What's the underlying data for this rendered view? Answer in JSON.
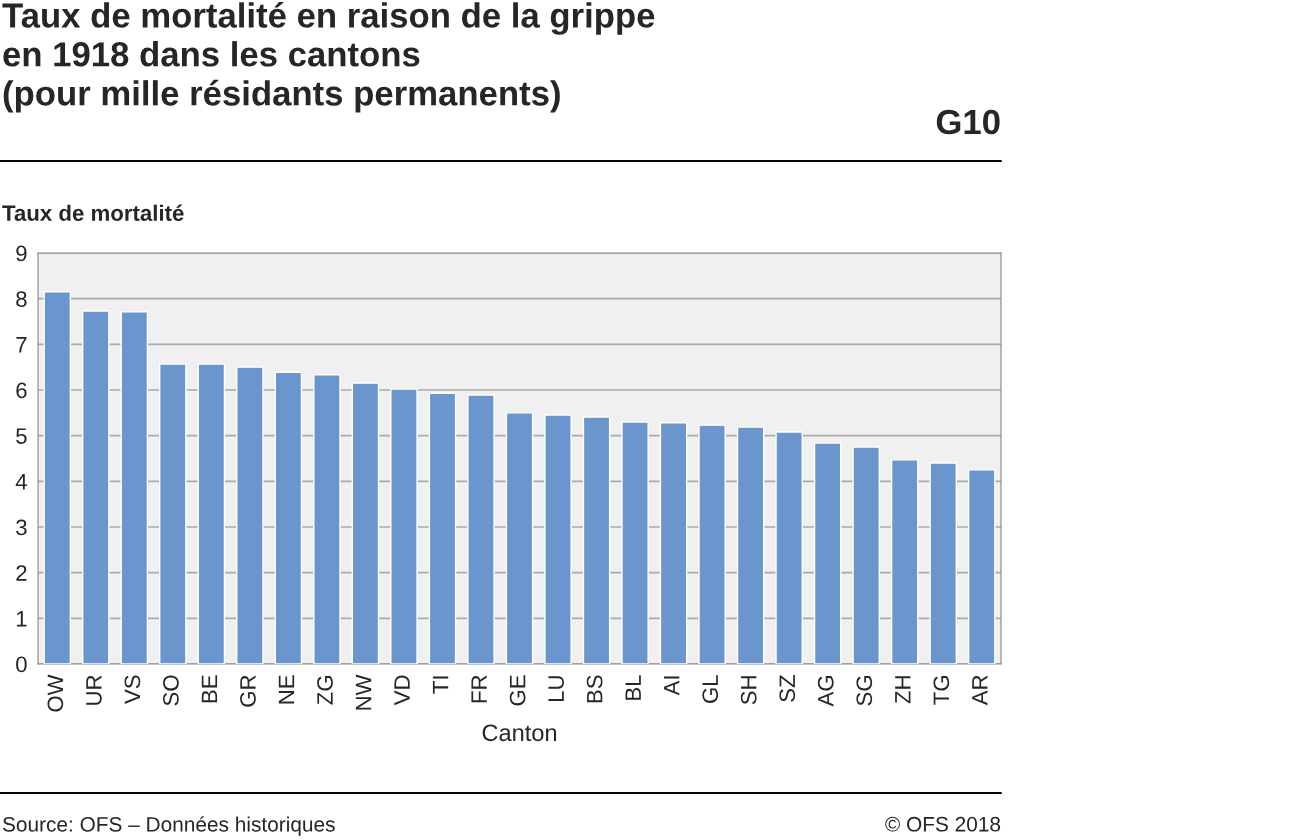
{
  "chart_data": {
    "type": "bar",
    "title": "Taux de mortalité en raison de la grippe\nen 1918 dans les cantons\n(pour mille résidants permanents)",
    "ylabel": "Taux de mortalité",
    "xlabel": "Canton",
    "categories": [
      "OW",
      "UR",
      "VS",
      "SO",
      "BE",
      "GR",
      "NE",
      "ZG",
      "NW",
      "VD",
      "TI",
      "FR",
      "GE",
      "LU",
      "BS",
      "BL",
      "AI",
      "GL",
      "SH",
      "SZ",
      "AG",
      "SG",
      "ZH",
      "TG",
      "AR"
    ],
    "values": [
      8.15,
      7.73,
      7.71,
      6.57,
      6.57,
      6.5,
      6.39,
      6.33,
      6.15,
      6.02,
      5.93,
      5.89,
      5.5,
      5.45,
      5.41,
      5.3,
      5.28,
      5.23,
      5.19,
      5.08,
      4.84,
      4.75,
      4.47,
      4.4,
      4.25
    ],
    "color": "#6a96cd",
    "ylim": [
      0,
      9
    ],
    "yticks": [
      0,
      1,
      2,
      3,
      4,
      5,
      6,
      7,
      8,
      9
    ],
    "grid": "y",
    "legend": false,
    "annotations": [
      "G10",
      "Source: OFS – Données historiques",
      "© OFS 2018"
    ]
  }
}
